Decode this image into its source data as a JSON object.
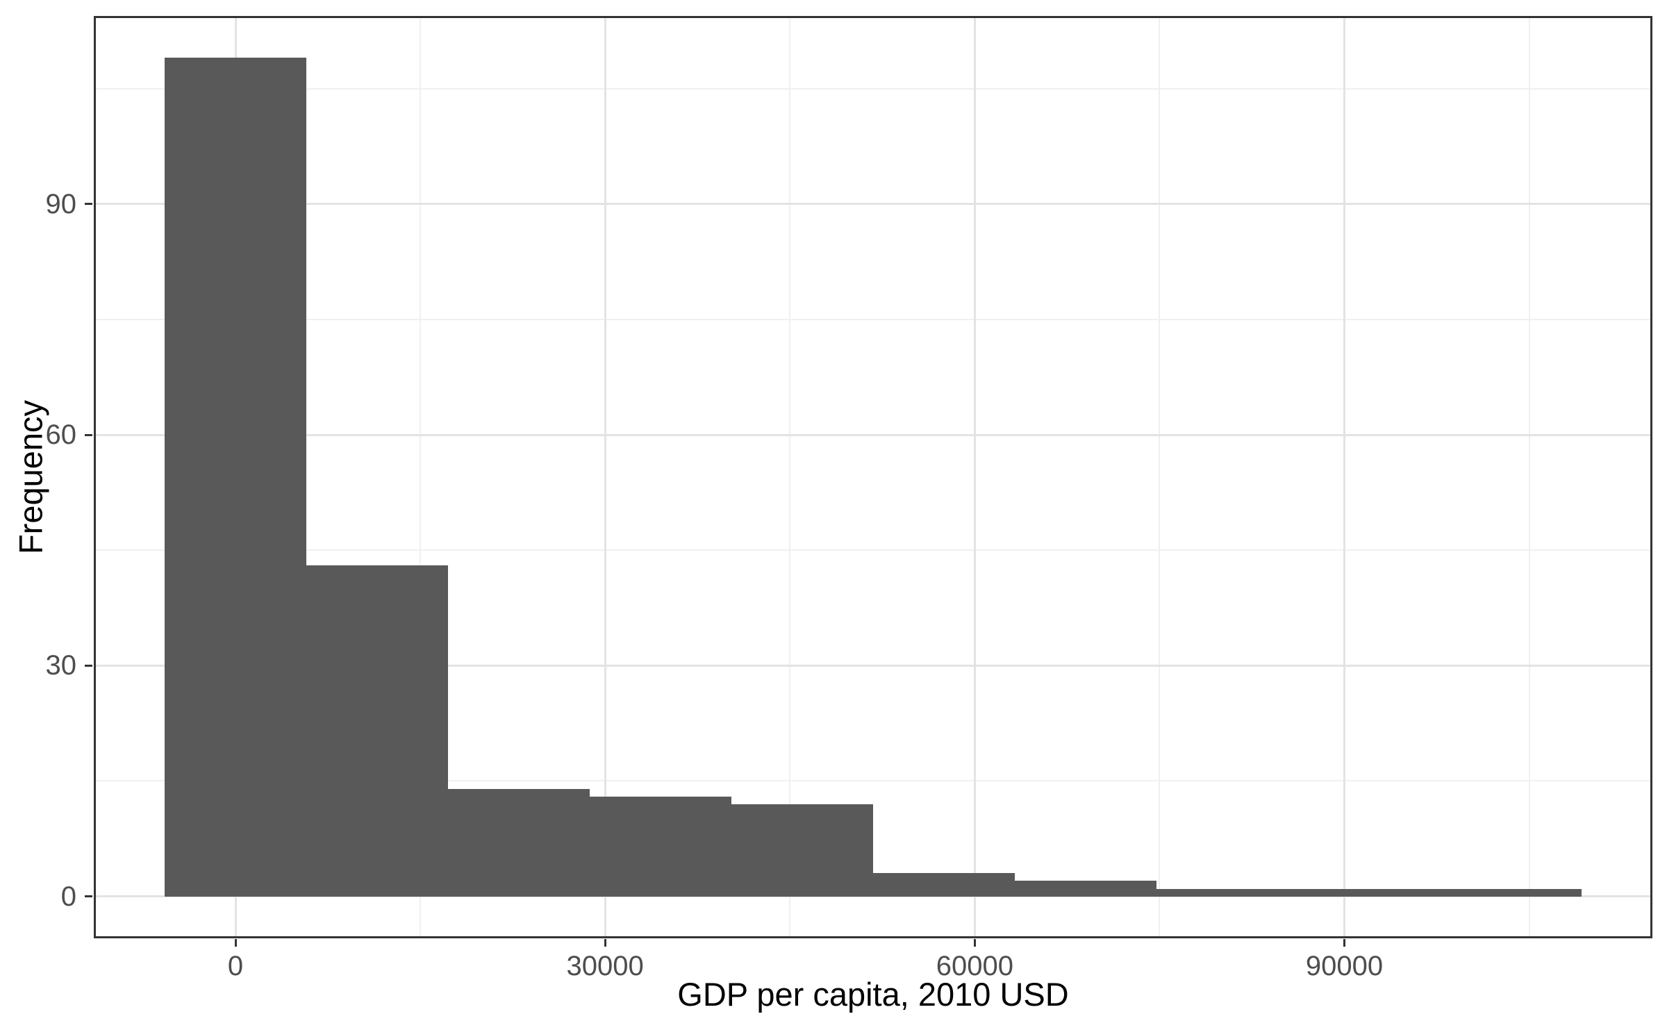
{
  "chart_data": {
    "type": "bar",
    "subtype": "histogram",
    "title": "",
    "xlabel": "GDP per capita, 2010 USD",
    "ylabel": "Frequency",
    "bin_edges": [
      -5750,
      5750,
      17250,
      28750,
      40250,
      51750,
      63250,
      74750,
      86250,
      97750,
      109250
    ],
    "counts": [
      109,
      43,
      14,
      13,
      12,
      3,
      2,
      1,
      1,
      1
    ],
    "x_tick_values": [
      0,
      30000,
      60000,
      90000
    ],
    "x_tick_labels": [
      "0",
      "30000",
      "60000",
      "90000"
    ],
    "y_tick_values": [
      0,
      30,
      60,
      90
    ],
    "y_tick_labels": [
      "0",
      "30",
      "60",
      "90"
    ],
    "x_minor_ticks": [
      15000,
      45000,
      75000,
      105000
    ],
    "y_minor_ticks": [
      15,
      45,
      75,
      105
    ],
    "xlim": [
      -11500,
      115000
    ],
    "ylim": [
      -5.45,
      114.45
    ],
    "grid": "on",
    "legend": "none",
    "colors": {
      "bar_fill": "#595959",
      "panel_border": "#333333",
      "grid_major": "#e3e3e3",
      "grid_minor": "#f0f0f0",
      "tick_mark": "#333333",
      "tick_label": "#4d4d4d",
      "axis_title": "#000000",
      "background": "#ffffff"
    }
  }
}
